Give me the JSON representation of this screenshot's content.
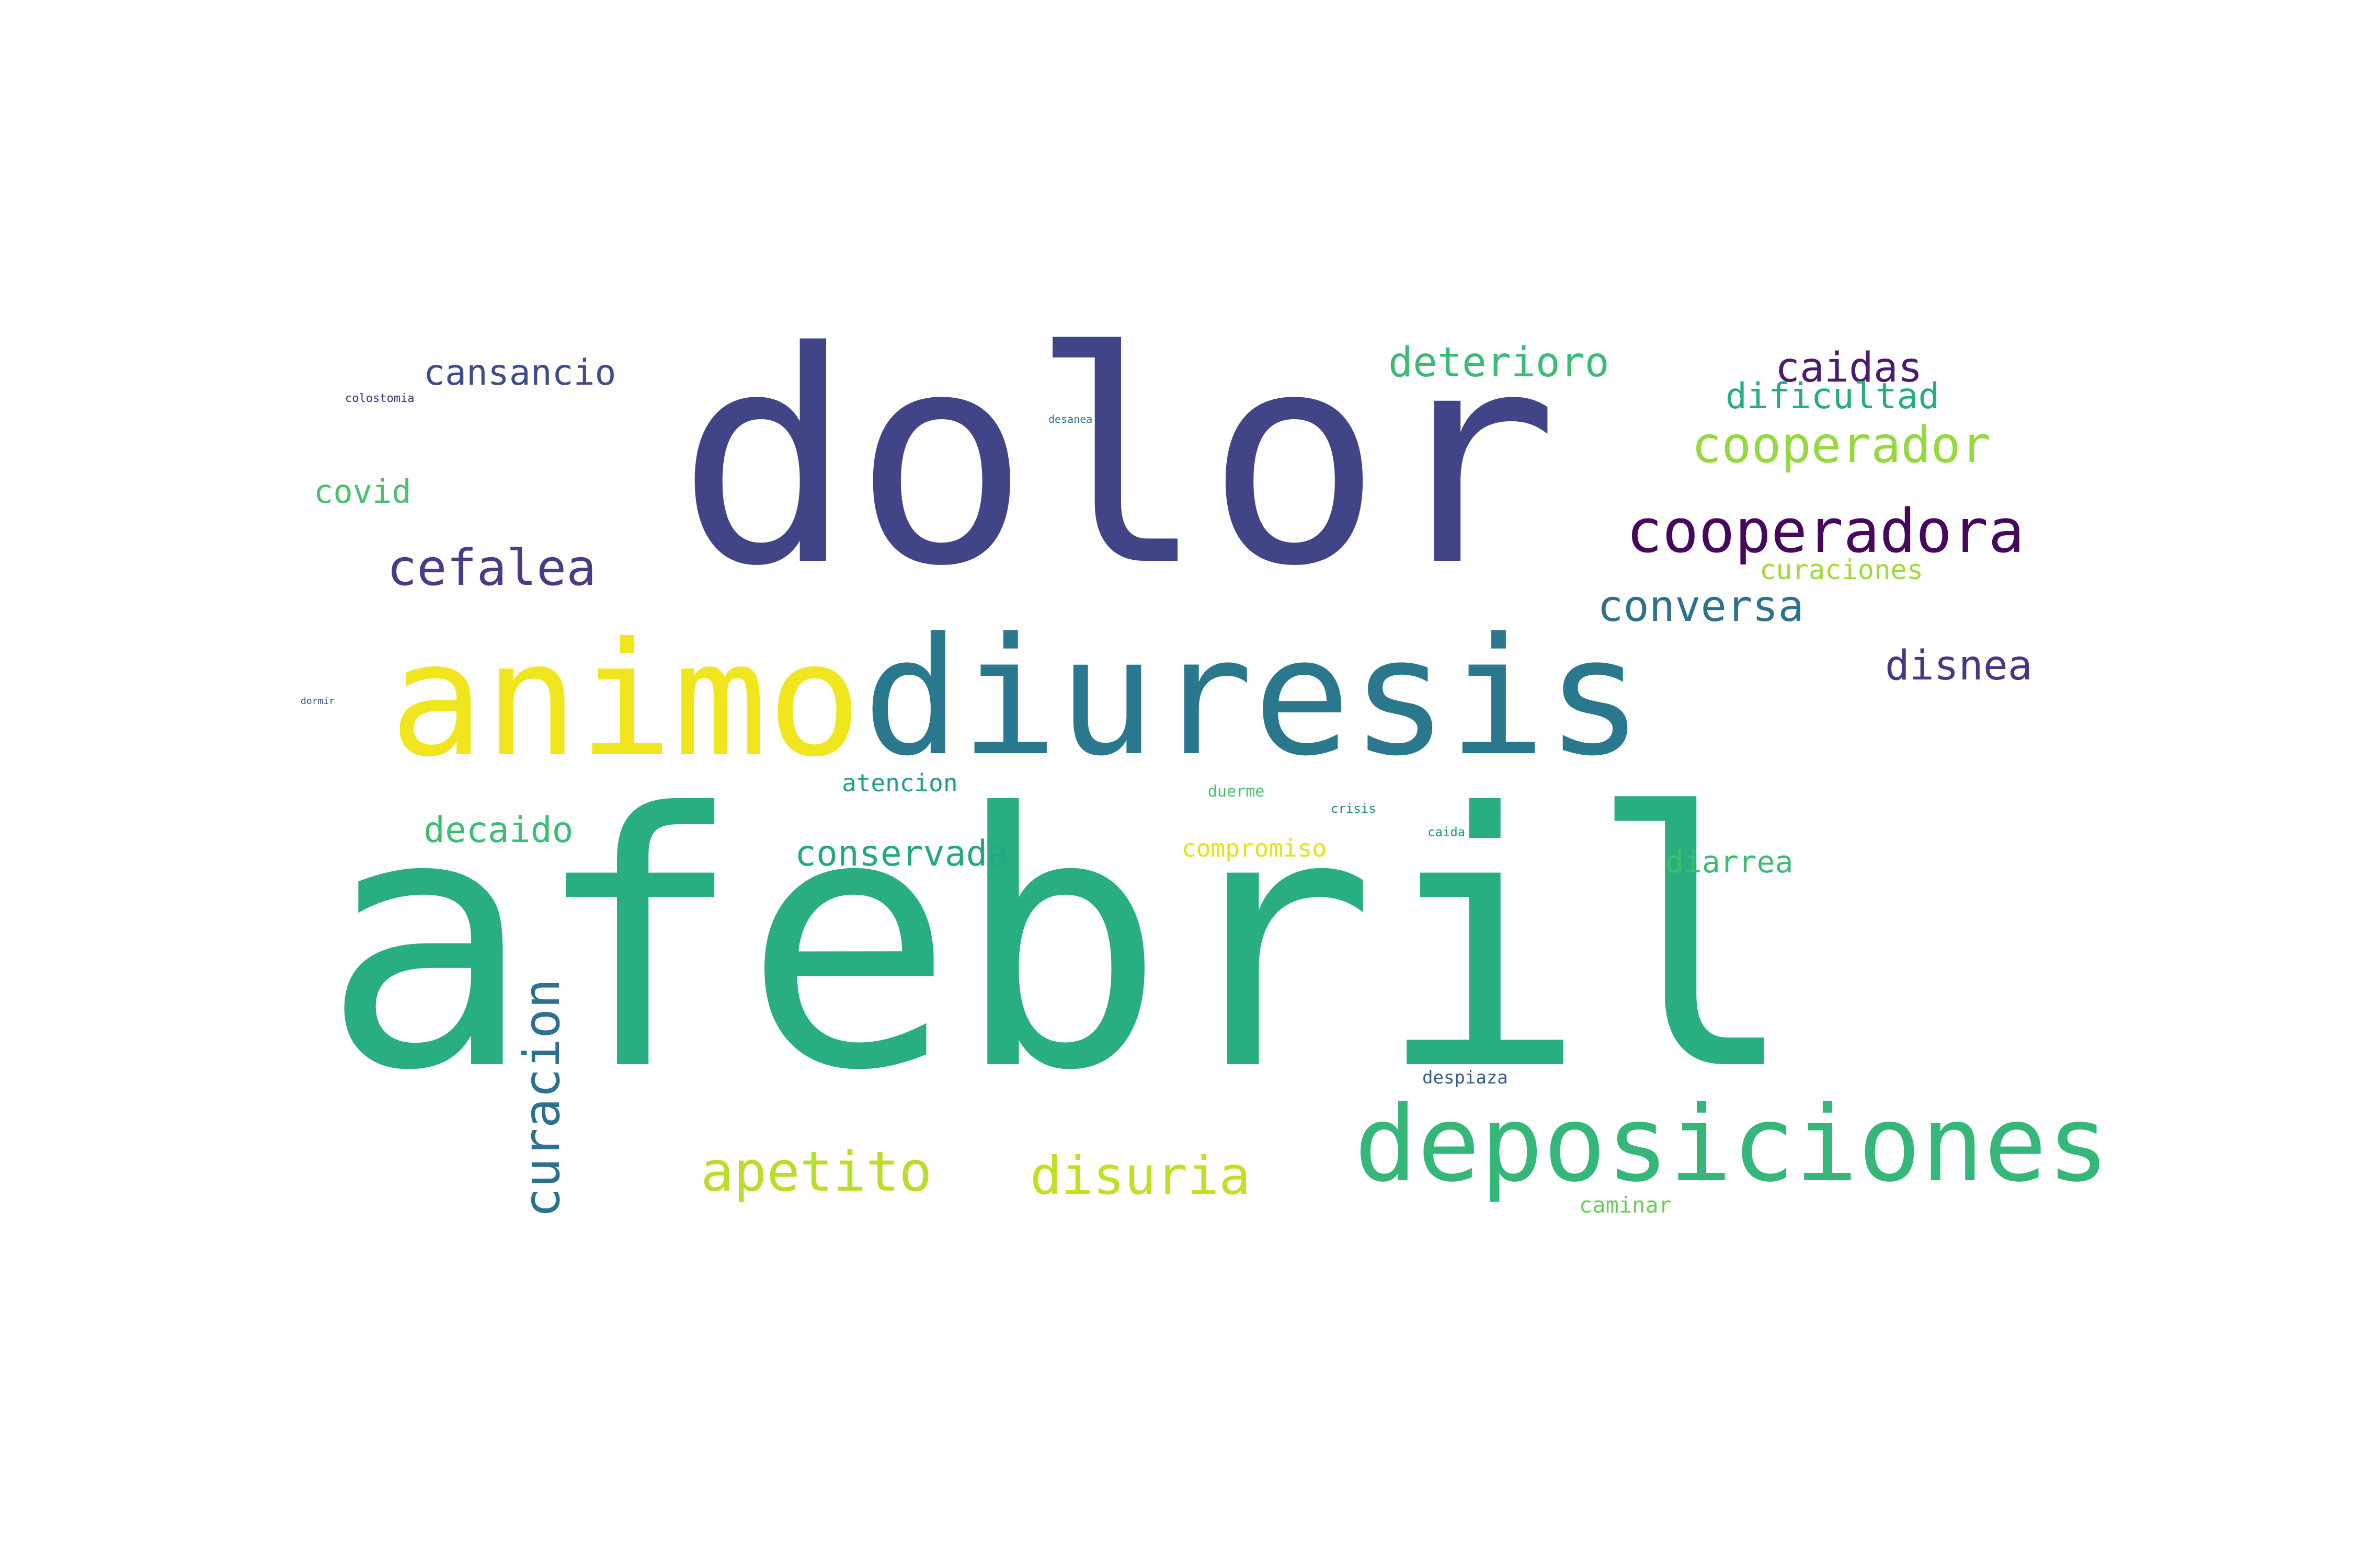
{
  "words": [
    {
      "key": "afebril",
      "text": "afebril",
      "color": "#29af7f",
      "vertical": false
    },
    {
      "key": "dolor",
      "text": "dolor",
      "color": "#414487",
      "vertical": false
    },
    {
      "key": "diuresis",
      "text": "diuresis",
      "color": "#2a788e",
      "vertical": false
    },
    {
      "key": "animo",
      "text": "animo",
      "color": "#f1e51d",
      "vertical": false
    },
    {
      "key": "deposiciones",
      "text": "deposiciones",
      "color": "#35b779",
      "vertical": false
    },
    {
      "key": "cooperadora",
      "text": "cooperadora",
      "color": "#46085c",
      "vertical": false
    },
    {
      "key": "cooperador",
      "text": "cooperador",
      "color": "#95d840",
      "vertical": false
    },
    {
      "key": "cefalea",
      "text": "cefalea",
      "color": "#433e85",
      "vertical": false
    },
    {
      "key": "apetito",
      "text": "apetito",
      "color": "#b8de29",
      "vertical": false
    },
    {
      "key": "disuria",
      "text": "disuria",
      "color": "#c2df23",
      "vertical": false
    },
    {
      "key": "curacion",
      "text": "curacion",
      "color": "#2c728e",
      "vertical": true
    },
    {
      "key": "conversa",
      "text": "conversa",
      "color": "#2d718e",
      "vertical": false
    },
    {
      "key": "disnea",
      "text": "disnea",
      "color": "#453882",
      "vertical": false
    },
    {
      "key": "deterioro",
      "text": "deterioro",
      "color": "#3bbb75",
      "vertical": false
    },
    {
      "key": "caidas",
      "text": "caidas",
      "color": "#481d6f",
      "vertical": false
    },
    {
      "key": "dificultad",
      "text": "dificultad",
      "color": "#26ad81",
      "vertical": false
    },
    {
      "key": "cansancio",
      "text": "cansancio",
      "color": "#3e4c8a",
      "vertical": false
    },
    {
      "key": "covid",
      "text": "covid",
      "color": "#4ac16d",
      "vertical": false
    },
    {
      "key": "decaido",
      "text": "decaido",
      "color": "#3dbc74",
      "vertical": false
    },
    {
      "key": "conservada",
      "text": "conservada",
      "color": "#22a884",
      "vertical": false
    },
    {
      "key": "diarrea",
      "text": "diarrea",
      "color": "#3fbc73",
      "vertical": false
    },
    {
      "key": "curaciones",
      "text": "curaciones",
      "color": "#a0da39",
      "vertical": false
    },
    {
      "key": "atencion",
      "text": "atencion",
      "color": "#1fa187",
      "vertical": false
    },
    {
      "key": "compromiso",
      "text": "compromiso",
      "color": "#e2e418",
      "vertical": false
    },
    {
      "key": "caminar",
      "text": "caminar",
      "color": "#6ccd5a",
      "vertical": false
    },
    {
      "key": "despiaza",
      "text": "despiaza",
      "color": "#365c8d",
      "vertical": false
    },
    {
      "key": "duerme",
      "text": "duerme",
      "color": "#4ac16d",
      "vertical": false
    },
    {
      "key": "crisis",
      "text": "crisis",
      "color": "#277f8e",
      "vertical": false
    },
    {
      "key": "caida",
      "text": "caida",
      "color": "#1f968b",
      "vertical": false
    },
    {
      "key": "colostomia",
      "text": "colostomia",
      "color": "#482878",
      "vertical": false
    },
    {
      "key": "desanea",
      "text": "desanea",
      "color": "#2c728e",
      "vertical": false
    },
    {
      "key": "dormir",
      "text": "dormir",
      "color": "#3b528b",
      "vertical": false
    }
  ]
}
